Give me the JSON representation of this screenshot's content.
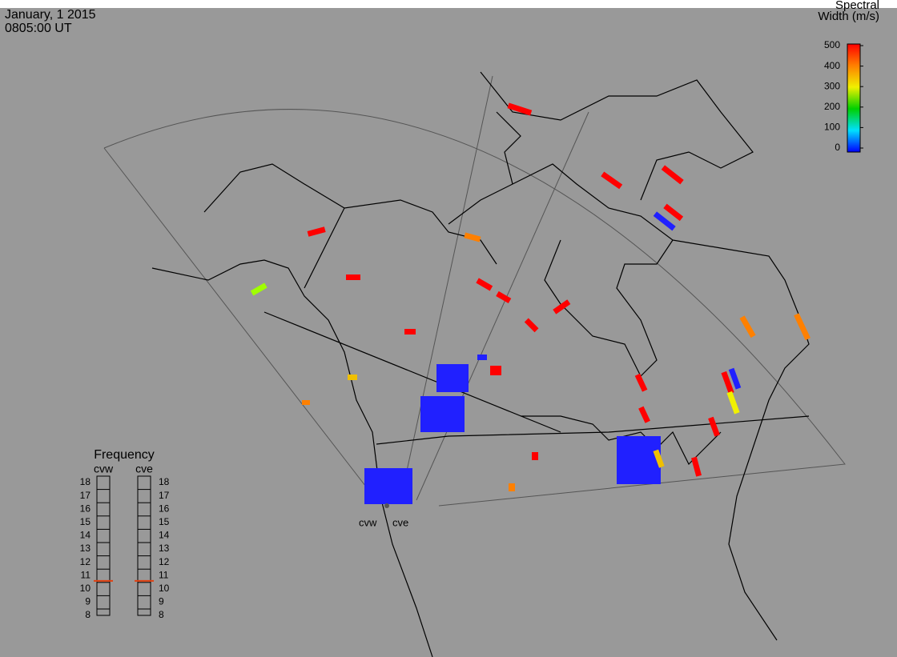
{
  "header": {
    "date": "January, 1 2015",
    "time": "0805:00 UT"
  },
  "colorbar": {
    "title_line1": "Spectral",
    "title_line2": "Width (m/s)",
    "lim": [
      0,
      500
    ],
    "ticks": [
      0,
      100,
      200,
      300,
      400,
      500
    ]
  },
  "frequency": {
    "title": "Frequency",
    "lim": [
      8,
      18
    ],
    "ticks": [
      8,
      9,
      10,
      11,
      12,
      13,
      14,
      15,
      16,
      17,
      18
    ],
    "radars": [
      {
        "name": "cvw",
        "value": 10.6
      },
      {
        "name": "cve",
        "value": 10.6
      }
    ]
  },
  "stations": [
    "cvw",
    "cve"
  ]
}
